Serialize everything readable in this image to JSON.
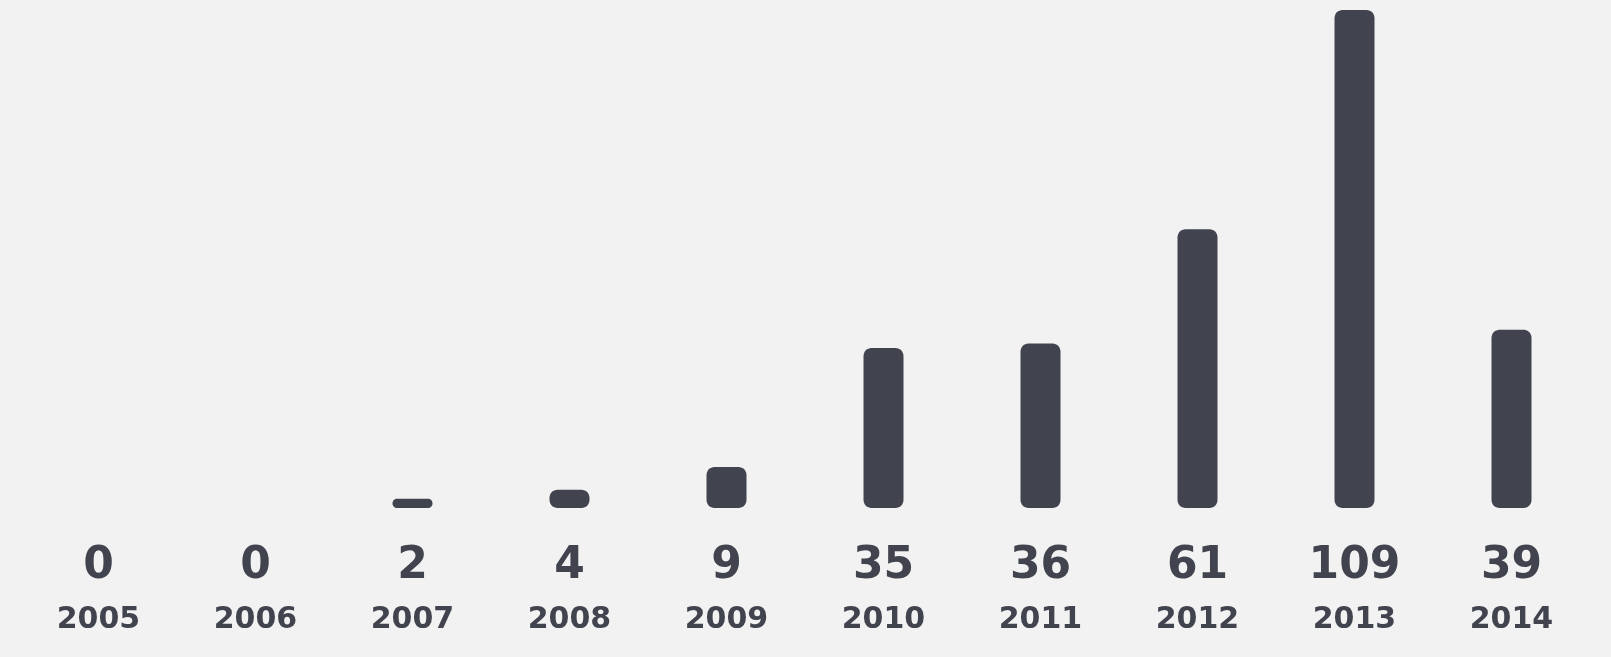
{
  "chart_data": {
    "type": "bar",
    "categories": [
      "2005",
      "2006",
      "2007",
      "2008",
      "2009",
      "2010",
      "2011",
      "2012",
      "2013",
      "2014"
    ],
    "values": [
      0,
      0,
      2,
      4,
      9,
      35,
      36,
      61,
      109,
      39
    ],
    "color": "#41444e",
    "data_labels": true
  }
}
